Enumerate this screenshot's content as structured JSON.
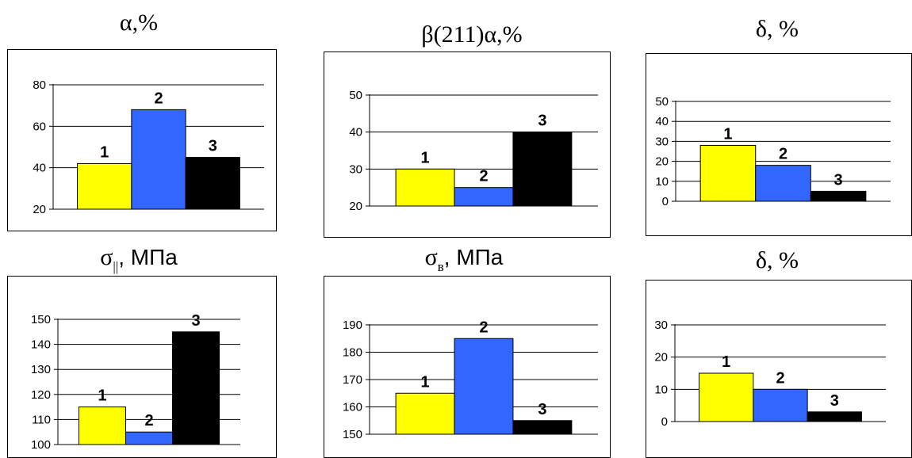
{
  "colors": {
    "series_1": "#FFFF00",
    "series_2": "#3366FF",
    "series_3": "#000000",
    "grid": "#000000"
  },
  "chart_data": [
    {
      "type": "bar",
      "title": "α,%",
      "categories": [
        "1",
        "2",
        "3"
      ],
      "values": [
        42,
        68,
        45
      ],
      "ylim": [
        20,
        80
      ],
      "yticks": [
        20,
        40,
        60,
        80
      ],
      "ytick_labels": [
        "20",
        "40",
        "60",
        "80"
      ],
      "grid": true
    },
    {
      "type": "bar",
      "title": "β(211)α,%",
      "categories": [
        "1",
        "2",
        "3"
      ],
      "values": [
        30,
        25,
        40
      ],
      "ylim": [
        20,
        50
      ],
      "yticks": [
        20,
        30,
        40,
        50
      ],
      "ytick_labels": [
        "20",
        "30",
        "40",
        "50"
      ],
      "grid": true
    },
    {
      "type": "bar",
      "title": "δ, %",
      "categories": [
        "1",
        "2",
        "3"
      ],
      "values": [
        28,
        18,
        5
      ],
      "ylim": [
        0,
        50
      ],
      "yticks": [
        0,
        10,
        20,
        30,
        40,
        50
      ],
      "ytick_labels": [
        "0",
        "10",
        "20",
        "30",
        "40",
        "50"
      ],
      "grid": true
    },
    {
      "type": "bar",
      "title": "σ",
      "title_sub": "||",
      "title_rest": ", МПа",
      "categories": [
        "1",
        "2",
        "3"
      ],
      "values": [
        115,
        105,
        145
      ],
      "ylim": [
        100,
        150
      ],
      "yticks": [
        100,
        110,
        120,
        130,
        140,
        150
      ],
      "ytick_labels": [
        "100",
        "110",
        "120",
        "130",
        "140",
        "150"
      ],
      "grid": true
    },
    {
      "type": "bar",
      "title": "σ",
      "title_sub": "в",
      "title_rest": ", МПа",
      "categories": [
        "1",
        "2",
        "3"
      ],
      "values": [
        165,
        185,
        155
      ],
      "ylim": [
        150,
        190
      ],
      "yticks": [
        150,
        160,
        170,
        180,
        190
      ],
      "ytick_labels": [
        "150",
        "160",
        "170",
        "180",
        "190"
      ],
      "grid": true
    },
    {
      "type": "bar",
      "title": "δ, %",
      "categories": [
        "1",
        "2",
        "3"
      ],
      "values": [
        15,
        10,
        3
      ],
      "ylim": [
        0,
        30
      ],
      "yticks": [
        0,
        10,
        20,
        30
      ],
      "ytick_labels": [
        "0",
        "10",
        "20",
        "30"
      ],
      "grid": true
    }
  ]
}
